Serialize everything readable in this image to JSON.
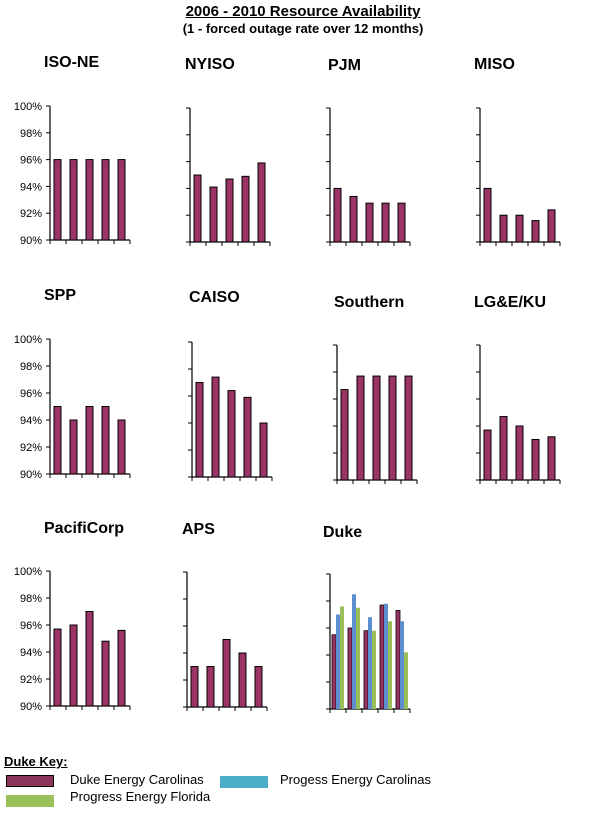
{
  "title": "2006 - 2010 Resource Availability",
  "subtitle": "(1 - forced outage rate over 12 months)",
  "chart_data": [
    {
      "type": "bar",
      "title": "ISO-NE",
      "ylim": [
        90,
        100
      ],
      "yticks": [
        "90%",
        "92%",
        "94%",
        "96%",
        "98%",
        "100%"
      ],
      "series": [
        {
          "values": [
            96,
            96,
            96,
            96,
            96
          ]
        }
      ]
    },
    {
      "type": "bar",
      "title": "NYISO",
      "ylim": [
        90,
        100
      ],
      "series": [
        {
          "values": [
            95.0,
            94.1,
            94.7,
            94.9,
            95.9
          ]
        }
      ]
    },
    {
      "type": "bar",
      "title": "PJM",
      "ylim": [
        90,
        100
      ],
      "series": [
        {
          "values": [
            94.0,
            93.4,
            92.9,
            92.9,
            92.9
          ]
        }
      ]
    },
    {
      "type": "bar",
      "title": "MISO",
      "ylim": [
        90,
        100
      ],
      "series": [
        {
          "values": [
            94.0,
            92.0,
            92.0,
            91.6,
            92.4
          ]
        }
      ]
    },
    {
      "type": "bar",
      "title": "SPP",
      "ylim": [
        90,
        100
      ],
      "yticks": [
        "90%",
        "92%",
        "94%",
        "96%",
        "98%",
        "100%"
      ],
      "series": [
        {
          "values": [
            95,
            94,
            95,
            95,
            94
          ]
        }
      ]
    },
    {
      "type": "bar",
      "title": "CAISO",
      "ylim": [
        90,
        100
      ],
      "series": [
        {
          "values": [
            97.0,
            97.4,
            96.4,
            95.9,
            94.0
          ]
        }
      ]
    },
    {
      "type": "bar",
      "title": "Southern",
      "ylim": [
        90,
        100
      ],
      "series": [
        {
          "values": [
            96.7,
            97.7,
            97.7,
            97.7,
            97.7
          ]
        }
      ]
    },
    {
      "type": "bar",
      "title": "LG&E/KU",
      "ylim": [
        90,
        100
      ],
      "series": [
        {
          "values": [
            93.7,
            94.7,
            94.0,
            93.0,
            93.2
          ]
        }
      ]
    },
    {
      "type": "bar",
      "title": "PacifiCorp",
      "ylim": [
        90,
        100
      ],
      "yticks": [
        "90%",
        "92%",
        "94%",
        "96%",
        "98%",
        "100%"
      ],
      "series": [
        {
          "values": [
            95.7,
            96.0,
            97.0,
            94.8,
            95.6
          ]
        }
      ]
    },
    {
      "type": "bar",
      "title": "APS",
      "ylim": [
        90,
        100
      ],
      "series": [
        {
          "values": [
            93,
            93,
            95,
            94,
            93
          ]
        }
      ]
    },
    {
      "type": "bar",
      "title": "Duke",
      "ylim": [
        90,
        100
      ],
      "series": [
        {
          "name": "Duke Energy Carolinas",
          "values": [
            95.5,
            96.0,
            95.8,
            97.7,
            97.3
          ]
        },
        {
          "name": "Progess Energy Carolinas",
          "values": [
            97.0,
            98.5,
            96.8,
            97.8,
            96.5
          ]
        },
        {
          "name": "Progress Energy Florida",
          "values": [
            97.6,
            97.5,
            95.8,
            96.5,
            94.2
          ]
        }
      ]
    }
  ],
  "key": {
    "title": "Duke Key:",
    "items": [
      {
        "label": "Duke Energy Carolinas",
        "color": "#8b3358"
      },
      {
        "label": "Progess Energy Carolinas",
        "color": "#4aaec6"
      },
      {
        "label": "Progress Energy Florida",
        "color": "#9bc05a"
      }
    ]
  },
  "colors": {
    "bar": "#9b3466",
    "duke_blue": "#5b8fd0",
    "duke_green": "#9bc05a"
  }
}
